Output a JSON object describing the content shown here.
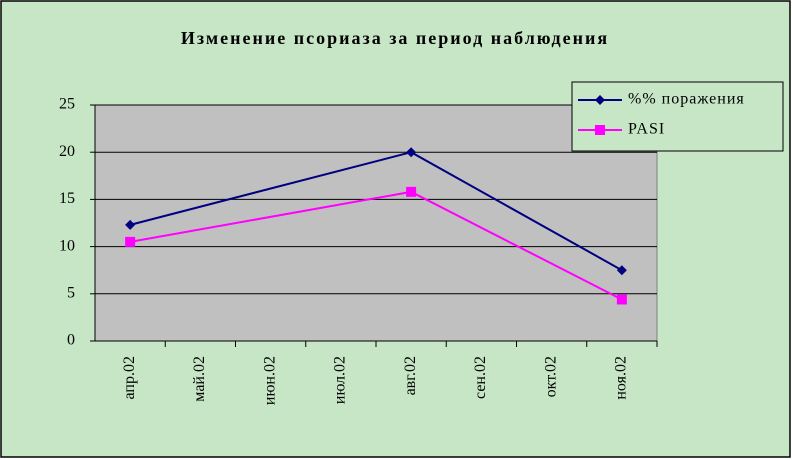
{
  "chart_data": {
    "type": "line",
    "title": "Изменение псориаза за период наблюдения",
    "categories": [
      "апр.02",
      "май.02",
      "июн.02",
      "июл.02",
      "авг.02",
      "сен.02",
      "окт.02",
      "ноя.02"
    ],
    "series": [
      {
        "name": "%% поражения",
        "color": "#000080",
        "marker": "diamond",
        "values": [
          12.3,
          null,
          null,
          null,
          20,
          null,
          null,
          7.5
        ]
      },
      {
        "name": "PASI",
        "color": "#ff00ff",
        "marker": "square",
        "values": [
          10.5,
          null,
          null,
          null,
          15.8,
          null,
          null,
          4.4
        ]
      }
    ],
    "connect_gaps": true,
    "ylim": [
      0,
      25
    ],
    "yticks": [
      0,
      5,
      10,
      15,
      20,
      25
    ],
    "grid": true
  }
}
